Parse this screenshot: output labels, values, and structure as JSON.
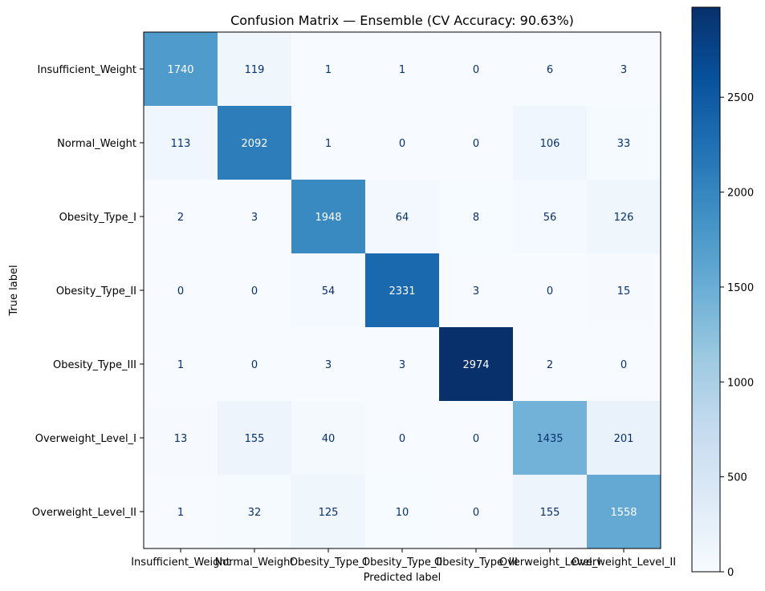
{
  "chart_data": {
    "type": "heatmap",
    "title": "Confusion Matrix — Ensemble (CV Accuracy: 90.63%)",
    "xlabel": "Predicted label",
    "ylabel": "True label",
    "x_categories": [
      "Insufficient_Weight",
      "Normal_Weight",
      "Obesity_Type_I",
      "Obesity_Type_II",
      "Obesity_Type_III",
      "Overweight_Level_I",
      "Overweight_Level_II"
    ],
    "y_categories": [
      "Insufficient_Weight",
      "Normal_Weight",
      "Obesity_Type_I",
      "Obesity_Type_II",
      "Obesity_Type_III",
      "Overweight_Level_I",
      "Overweight_Level_II"
    ],
    "values": [
      [
        1740,
        119,
        1,
        1,
        0,
        6,
        3
      ],
      [
        113,
        2092,
        1,
        0,
        0,
        106,
        33
      ],
      [
        2,
        3,
        1948,
        64,
        8,
        56,
        126
      ],
      [
        0,
        0,
        54,
        2331,
        3,
        0,
        15
      ],
      [
        1,
        0,
        3,
        3,
        2974,
        2,
        0
      ],
      [
        13,
        155,
        40,
        0,
        0,
        1435,
        201
      ],
      [
        1,
        32,
        125,
        10,
        0,
        155,
        1558
      ]
    ],
    "colormap": "Blues",
    "colorbar": {
      "range": [
        0,
        2974
      ],
      "ticks": [
        0,
        500,
        1000,
        1500,
        2000,
        2500
      ]
    },
    "text_colors": {
      "light": "#ffffff",
      "dark": "#08306b"
    },
    "grid": false
  }
}
